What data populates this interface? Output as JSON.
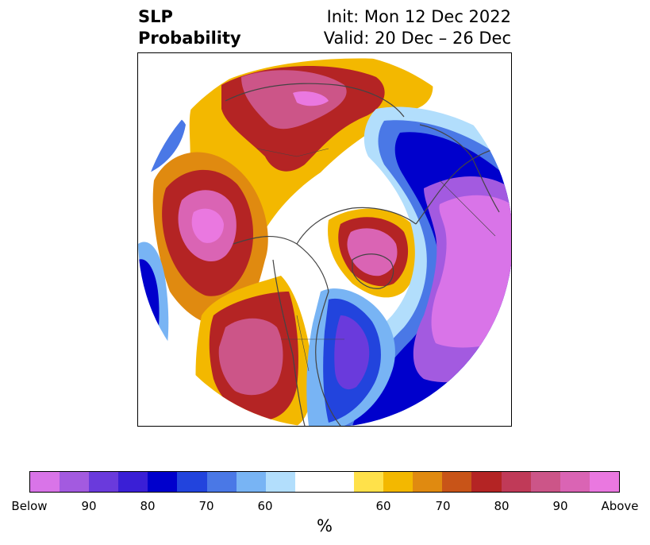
{
  "header": {
    "title_line1": "SLP",
    "title_line2": "Probability",
    "init_text": "Init: Mon 12 Dec 2022",
    "valid_text": "Valid: 20 Dec – 26 Dec"
  },
  "map": {
    "projection": "north-polar-stereographic",
    "categories": [
      "below",
      "neutral",
      "above"
    ]
  },
  "colorbar": {
    "unit": "%",
    "ticks": [
      "Below",
      "90",
      "80",
      "70",
      "60",
      "60",
      "70",
      "80",
      "90",
      "Above"
    ],
    "colors": [
      "#d974e8",
      "#a35ae0",
      "#6a3adc",
      "#3a1fd6",
      "#0000cc",
      "#2244dd",
      "#4a78e6",
      "#78b4f4",
      "#b2defc",
      "#ffffff",
      "#ffe14a",
      "#f3b800",
      "#e08a10",
      "#c85418",
      "#b42424",
      "#c03a58",
      "#cc5588",
      "#da64b4",
      "#ea78e0"
    ]
  }
}
